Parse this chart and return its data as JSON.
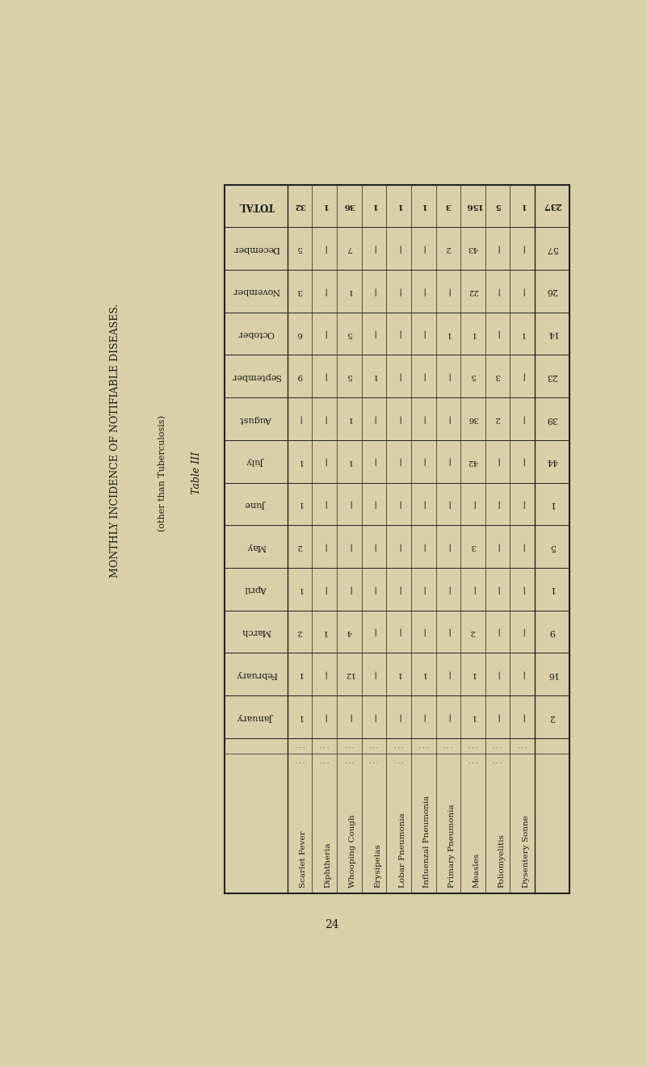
{
  "title": "MONTHLY INCIDENCE OF NOTIFIABLE DISEASES.",
  "subtitle": "(other than Tuberculosis)",
  "table_label": "Table III",
  "page_number": "24",
  "bg_color": "#d9cfa8",
  "diseases": [
    "Scarlet Fever",
    "Diphtheria",
    "Whooping Cough",
    "Erysipelas",
    "Lobar Pneumonia",
    "Influenzal Pneumonia",
    "Primary Pneumonia",
    "Measles",
    "Poliomyelitis",
    "Dysentery Sonne"
  ],
  "disease_has_dots": [
    true,
    true,
    true,
    true,
    true,
    false,
    false,
    true,
    true,
    false
  ],
  "months_display": [
    "TOTAL",
    "December",
    "November",
    "October",
    "September",
    "August",
    "July",
    "June",
    "May",
    "April",
    "March",
    "February",
    "January"
  ],
  "data": {
    "TOTAL": [
      32,
      1,
      36,
      1,
      1,
      1,
      3,
      156,
      5,
      1
    ],
    "December": [
      5,
      0,
      7,
      0,
      0,
      0,
      2,
      43,
      0,
      0
    ],
    "November": [
      3,
      0,
      1,
      0,
      0,
      0,
      0,
      22,
      0,
      0
    ],
    "October": [
      6,
      0,
      5,
      0,
      0,
      0,
      1,
      1,
      0,
      1
    ],
    "September": [
      9,
      0,
      5,
      1,
      0,
      0,
      0,
      5,
      3,
      0
    ],
    "August": [
      0,
      0,
      1,
      0,
      0,
      0,
      0,
      36,
      2,
      0
    ],
    "July": [
      1,
      0,
      1,
      0,
      0,
      0,
      0,
      42,
      0,
      0
    ],
    "June": [
      1,
      0,
      0,
      0,
      0,
      0,
      0,
      0,
      0,
      0
    ],
    "May": [
      2,
      0,
      0,
      0,
      0,
      0,
      0,
      3,
      0,
      0
    ],
    "April": [
      1,
      0,
      0,
      0,
      0,
      0,
      0,
      0,
      0,
      0
    ],
    "March": [
      2,
      1,
      4,
      0,
      0,
      0,
      0,
      2,
      0,
      0
    ],
    "February": [
      1,
      0,
      12,
      0,
      1,
      1,
      0,
      1,
      0,
      0
    ],
    "January": [
      1,
      0,
      0,
      0,
      0,
      0,
      0,
      1,
      0,
      0
    ]
  },
  "row_totals": {
    "TOTAL": 237,
    "December": 57,
    "November": 26,
    "October": 14,
    "September": 23,
    "August": 39,
    "July": 44,
    "June": 1,
    "May": 5,
    "April": 1,
    "March": 9,
    "February": 16,
    "January": 2
  }
}
